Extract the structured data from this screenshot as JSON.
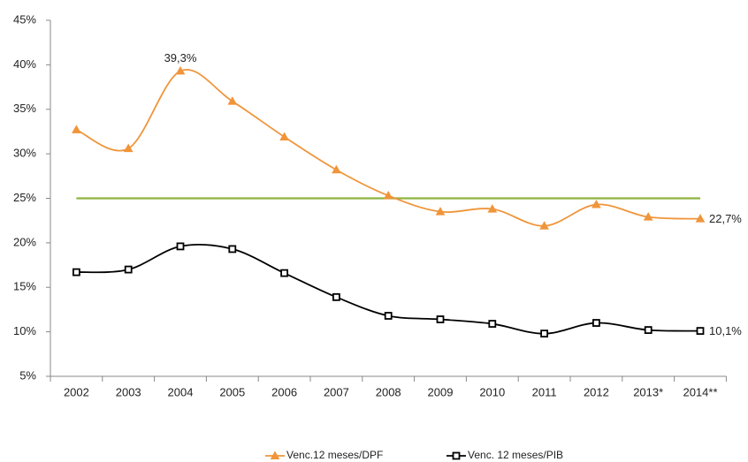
{
  "chart_data": {
    "type": "line",
    "categories": [
      "2002",
      "2003",
      "2004",
      "2005",
      "2006",
      "2007",
      "2008",
      "2009",
      "2010",
      "2011",
      "2012",
      "2013*",
      "2014**"
    ],
    "series": [
      {
        "name": "Venc.12 meses/DPF",
        "color": "#f0953a",
        "marker": "triangle",
        "values": [
          32.7,
          30.6,
          39.3,
          35.9,
          31.9,
          28.2,
          25.3,
          23.5,
          23.8,
          21.9,
          24.3,
          22.9,
          22.7
        ],
        "value_labels": [
          null,
          null,
          "39,3%",
          null,
          null,
          null,
          null,
          null,
          null,
          null,
          null,
          null,
          "22,7%"
        ]
      },
      {
        "name": "Venc. 12 meses/PIB",
        "color": "#000000",
        "marker": "square",
        "values": [
          16.7,
          17.0,
          19.6,
          19.3,
          16.6,
          13.9,
          11.8,
          11.4,
          10.9,
          9.8,
          11.0,
          10.2,
          10.1
        ],
        "value_labels": [
          null,
          null,
          null,
          null,
          null,
          null,
          null,
          null,
          null,
          null,
          null,
          null,
          "10,1%"
        ]
      }
    ],
    "reference_line": {
      "value": 25,
      "color": "#8db33f"
    },
    "ylim": [
      5,
      45
    ],
    "yticks": [
      {
        "value": 5,
        "label": "5%"
      },
      {
        "value": 10,
        "label": "10%"
      },
      {
        "value": 15,
        "label": "15%"
      },
      {
        "value": 20,
        "label": "20%"
      },
      {
        "value": 25,
        "label": "25%"
      },
      {
        "value": 30,
        "label": "30%"
      },
      {
        "value": 35,
        "label": "35%"
      },
      {
        "value": 40,
        "label": "40%"
      },
      {
        "value": 45,
        "label": "45%"
      }
    ],
    "grid": false,
    "smooth": true,
    "legend": "bottom"
  }
}
